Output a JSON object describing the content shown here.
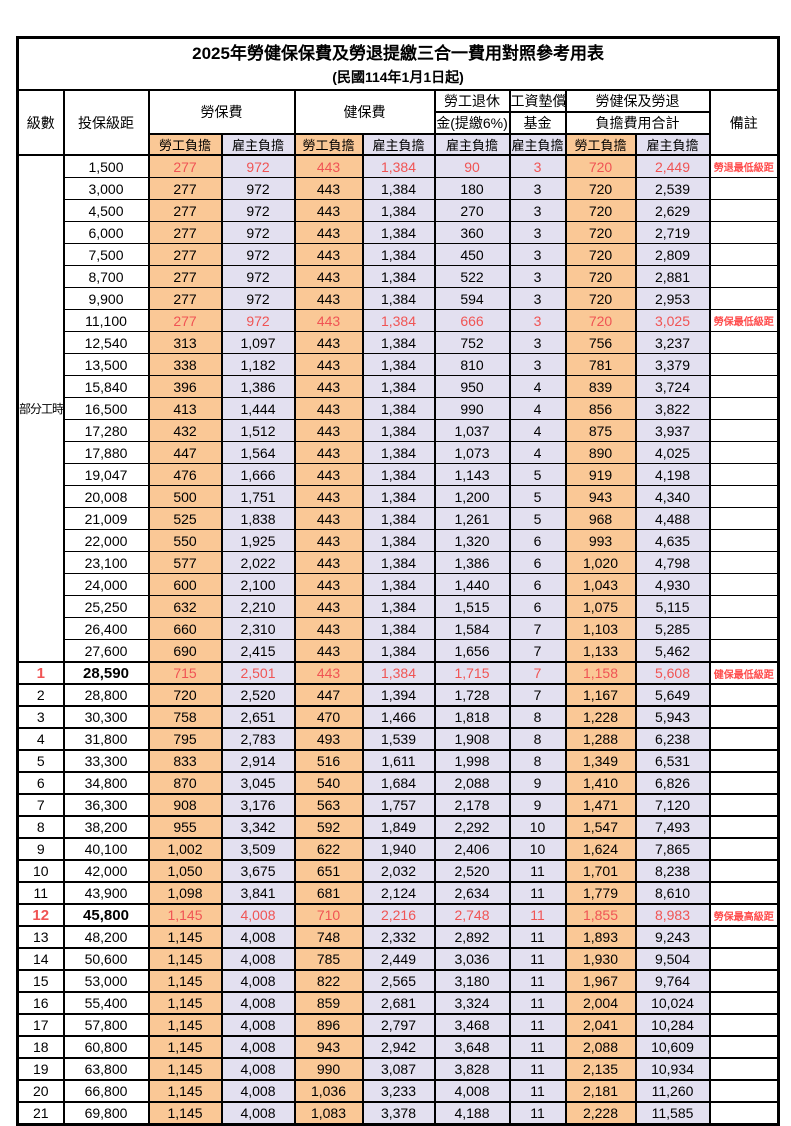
{
  "title": "2025年勞健保保費及勞退提繳三合一費用對照參考用表",
  "subtitle": "(民國114年1月1日起)",
  "header": {
    "level": "級數",
    "bracket": "投保級距",
    "labor_ins": "勞保費",
    "health_ins": "健保費",
    "pension_line1": "勞工退休",
    "pension_line2": "金(提繳6%)",
    "wage_fund_line1": "工資墊償",
    "wage_fund_line2": "基金",
    "total_line1": "勞健保及勞退",
    "total_line2": "負擔費用合計",
    "remark": "備註",
    "employee": "勞工負擔",
    "employer": "雇主負擔"
  },
  "part_time_label": "部分工時",
  "part_time_row_count": 23,
  "value_column_names": [
    "labor-employee",
    "labor-employer",
    "health-employee",
    "health-employer",
    "pension-employer",
    "wage-fund-employer",
    "total-employee",
    "total-employer"
  ],
  "employee_value_columns": [
    0,
    2,
    6
  ],
  "colors": {
    "employee_bg": "#FAC896",
    "employer_bg": "#E3E0F0",
    "highlight_red": "#F05454",
    "remark_red": "#FF4D4D"
  },
  "rows": [
    {
      "lv": "",
      "br": "1,500",
      "v": [
        "277",
        "972",
        "443",
        "1,384",
        "90",
        "3",
        "720",
        "2,449"
      ],
      "rm": "勞退最低級距",
      "red": true,
      "bold": false
    },
    {
      "lv": "",
      "br": "3,000",
      "v": [
        "277",
        "972",
        "443",
        "1,384",
        "180",
        "3",
        "720",
        "2,539"
      ],
      "rm": "",
      "red": false,
      "bold": false
    },
    {
      "lv": "",
      "br": "4,500",
      "v": [
        "277",
        "972",
        "443",
        "1,384",
        "270",
        "3",
        "720",
        "2,629"
      ],
      "rm": "",
      "red": false,
      "bold": false
    },
    {
      "lv": "",
      "br": "6,000",
      "v": [
        "277",
        "972",
        "443",
        "1,384",
        "360",
        "3",
        "720",
        "2,719"
      ],
      "rm": "",
      "red": false,
      "bold": false
    },
    {
      "lv": "",
      "br": "7,500",
      "v": [
        "277",
        "972",
        "443",
        "1,384",
        "450",
        "3",
        "720",
        "2,809"
      ],
      "rm": "",
      "red": false,
      "bold": false
    },
    {
      "lv": "",
      "br": "8,700",
      "v": [
        "277",
        "972",
        "443",
        "1,384",
        "522",
        "3",
        "720",
        "2,881"
      ],
      "rm": "",
      "red": false,
      "bold": false
    },
    {
      "lv": "",
      "br": "9,900",
      "v": [
        "277",
        "972",
        "443",
        "1,384",
        "594",
        "3",
        "720",
        "2,953"
      ],
      "rm": "",
      "red": false,
      "bold": false
    },
    {
      "lv": "",
      "br": "11,100",
      "v": [
        "277",
        "972",
        "443",
        "1,384",
        "666",
        "3",
        "720",
        "3,025"
      ],
      "rm": "勞保最低級距",
      "red": true,
      "bold": false
    },
    {
      "lv": "",
      "br": "12,540",
      "v": [
        "313",
        "1,097",
        "443",
        "1,384",
        "752",
        "3",
        "756",
        "3,237"
      ],
      "rm": "",
      "red": false,
      "bold": false
    },
    {
      "lv": "",
      "br": "13,500",
      "v": [
        "338",
        "1,182",
        "443",
        "1,384",
        "810",
        "3",
        "781",
        "3,379"
      ],
      "rm": "",
      "red": false,
      "bold": false
    },
    {
      "lv": "",
      "br": "15,840",
      "v": [
        "396",
        "1,386",
        "443",
        "1,384",
        "950",
        "4",
        "839",
        "3,724"
      ],
      "rm": "",
      "red": false,
      "bold": false
    },
    {
      "lv": "",
      "br": "16,500",
      "v": [
        "413",
        "1,444",
        "443",
        "1,384",
        "990",
        "4",
        "856",
        "3,822"
      ],
      "rm": "",
      "red": false,
      "bold": false
    },
    {
      "lv": "",
      "br": "17,280",
      "v": [
        "432",
        "1,512",
        "443",
        "1,384",
        "1,037",
        "4",
        "875",
        "3,937"
      ],
      "rm": "",
      "red": false,
      "bold": false
    },
    {
      "lv": "",
      "br": "17,880",
      "v": [
        "447",
        "1,564",
        "443",
        "1,384",
        "1,073",
        "4",
        "890",
        "4,025"
      ],
      "rm": "",
      "red": false,
      "bold": false
    },
    {
      "lv": "",
      "br": "19,047",
      "v": [
        "476",
        "1,666",
        "443",
        "1,384",
        "1,143",
        "5",
        "919",
        "4,198"
      ],
      "rm": "",
      "red": false,
      "bold": false
    },
    {
      "lv": "",
      "br": "20,008",
      "v": [
        "500",
        "1,751",
        "443",
        "1,384",
        "1,200",
        "5",
        "943",
        "4,340"
      ],
      "rm": "",
      "red": false,
      "bold": false
    },
    {
      "lv": "",
      "br": "21,009",
      "v": [
        "525",
        "1,838",
        "443",
        "1,384",
        "1,261",
        "5",
        "968",
        "4,488"
      ],
      "rm": "",
      "red": false,
      "bold": false
    },
    {
      "lv": "",
      "br": "22,000",
      "v": [
        "550",
        "1,925",
        "443",
        "1,384",
        "1,320",
        "6",
        "993",
        "4,635"
      ],
      "rm": "",
      "red": false,
      "bold": false
    },
    {
      "lv": "",
      "br": "23,100",
      "v": [
        "577",
        "2,022",
        "443",
        "1,384",
        "1,386",
        "6",
        "1,020",
        "4,798"
      ],
      "rm": "",
      "red": false,
      "bold": false
    },
    {
      "lv": "",
      "br": "24,000",
      "v": [
        "600",
        "2,100",
        "443",
        "1,384",
        "1,440",
        "6",
        "1,043",
        "4,930"
      ],
      "rm": "",
      "red": false,
      "bold": false
    },
    {
      "lv": "",
      "br": "25,250",
      "v": [
        "632",
        "2,210",
        "443",
        "1,384",
        "1,515",
        "6",
        "1,075",
        "5,115"
      ],
      "rm": "",
      "red": false,
      "bold": false
    },
    {
      "lv": "",
      "br": "26,400",
      "v": [
        "660",
        "2,310",
        "443",
        "1,384",
        "1,584",
        "7",
        "1,103",
        "5,285"
      ],
      "rm": "",
      "red": false,
      "bold": false
    },
    {
      "lv": "",
      "br": "27,600",
      "v": [
        "690",
        "2,415",
        "443",
        "1,384",
        "1,656",
        "7",
        "1,133",
        "5,462"
      ],
      "rm": "",
      "red": false,
      "bold": false
    },
    {
      "lv": "1",
      "br": "28,590",
      "v": [
        "715",
        "2,501",
        "443",
        "1,384",
        "1,715",
        "7",
        "1,158",
        "5,608"
      ],
      "rm": "健保最低級距",
      "red": true,
      "bold": true
    },
    {
      "lv": "2",
      "br": "28,800",
      "v": [
        "720",
        "2,520",
        "447",
        "1,394",
        "1,728",
        "7",
        "1,167",
        "5,649"
      ],
      "rm": "",
      "red": false,
      "bold": false
    },
    {
      "lv": "3",
      "br": "30,300",
      "v": [
        "758",
        "2,651",
        "470",
        "1,466",
        "1,818",
        "8",
        "1,228",
        "5,943"
      ],
      "rm": "",
      "red": false,
      "bold": false
    },
    {
      "lv": "4",
      "br": "31,800",
      "v": [
        "795",
        "2,783",
        "493",
        "1,539",
        "1,908",
        "8",
        "1,288",
        "6,238"
      ],
      "rm": "",
      "red": false,
      "bold": false
    },
    {
      "lv": "5",
      "br": "33,300",
      "v": [
        "833",
        "2,914",
        "516",
        "1,611",
        "1,998",
        "8",
        "1,349",
        "6,531"
      ],
      "rm": "",
      "red": false,
      "bold": false
    },
    {
      "lv": "6",
      "br": "34,800",
      "v": [
        "870",
        "3,045",
        "540",
        "1,684",
        "2,088",
        "9",
        "1,410",
        "6,826"
      ],
      "rm": "",
      "red": false,
      "bold": false
    },
    {
      "lv": "7",
      "br": "36,300",
      "v": [
        "908",
        "3,176",
        "563",
        "1,757",
        "2,178",
        "9",
        "1,471",
        "7,120"
      ],
      "rm": "",
      "red": false,
      "bold": false
    },
    {
      "lv": "8",
      "br": "38,200",
      "v": [
        "955",
        "3,342",
        "592",
        "1,849",
        "2,292",
        "10",
        "1,547",
        "7,493"
      ],
      "rm": "",
      "red": false,
      "bold": false
    },
    {
      "lv": "9",
      "br": "40,100",
      "v": [
        "1,002",
        "3,509",
        "622",
        "1,940",
        "2,406",
        "10",
        "1,624",
        "7,865"
      ],
      "rm": "",
      "red": false,
      "bold": false
    },
    {
      "lv": "10",
      "br": "42,000",
      "v": [
        "1,050",
        "3,675",
        "651",
        "2,032",
        "2,520",
        "11",
        "1,701",
        "8,238"
      ],
      "rm": "",
      "red": false,
      "bold": false
    },
    {
      "lv": "11",
      "br": "43,900",
      "v": [
        "1,098",
        "3,841",
        "681",
        "2,124",
        "2,634",
        "11",
        "1,779",
        "8,610"
      ],
      "rm": "",
      "red": false,
      "bold": false
    },
    {
      "lv": "12",
      "br": "45,800",
      "v": [
        "1,145",
        "4,008",
        "710",
        "2,216",
        "2,748",
        "11",
        "1,855",
        "8,983"
      ],
      "rm": "勞保最高級距",
      "red": true,
      "bold": true
    },
    {
      "lv": "13",
      "br": "48,200",
      "v": [
        "1,145",
        "4,008",
        "748",
        "2,332",
        "2,892",
        "11",
        "1,893",
        "9,243"
      ],
      "rm": "",
      "red": false,
      "bold": false
    },
    {
      "lv": "14",
      "br": "50,600",
      "v": [
        "1,145",
        "4,008",
        "785",
        "2,449",
        "3,036",
        "11",
        "1,930",
        "9,504"
      ],
      "rm": "",
      "red": false,
      "bold": false
    },
    {
      "lv": "15",
      "br": "53,000",
      "v": [
        "1,145",
        "4,008",
        "822",
        "2,565",
        "3,180",
        "11",
        "1,967",
        "9,764"
      ],
      "rm": "",
      "red": false,
      "bold": false
    },
    {
      "lv": "16",
      "br": "55,400",
      "v": [
        "1,145",
        "4,008",
        "859",
        "2,681",
        "3,324",
        "11",
        "2,004",
        "10,024"
      ],
      "rm": "",
      "red": false,
      "bold": false
    },
    {
      "lv": "17",
      "br": "57,800",
      "v": [
        "1,145",
        "4,008",
        "896",
        "2,797",
        "3,468",
        "11",
        "2,041",
        "10,284"
      ],
      "rm": "",
      "red": false,
      "bold": false
    },
    {
      "lv": "18",
      "br": "60,800",
      "v": [
        "1,145",
        "4,008",
        "943",
        "2,942",
        "3,648",
        "11",
        "2,088",
        "10,609"
      ],
      "rm": "",
      "red": false,
      "bold": false
    },
    {
      "lv": "19",
      "br": "63,800",
      "v": [
        "1,145",
        "4,008",
        "990",
        "3,087",
        "3,828",
        "11",
        "2,135",
        "10,934"
      ],
      "rm": "",
      "red": false,
      "bold": false
    },
    {
      "lv": "20",
      "br": "66,800",
      "v": [
        "1,145",
        "4,008",
        "1,036",
        "3,233",
        "4,008",
        "11",
        "2,181",
        "11,260"
      ],
      "rm": "",
      "red": false,
      "bold": false
    },
    {
      "lv": "21",
      "br": "69,800",
      "v": [
        "1,145",
        "4,008",
        "1,083",
        "3,378",
        "4,188",
        "11",
        "2,228",
        "11,585"
      ],
      "rm": "",
      "red": false,
      "bold": false
    }
  ]
}
